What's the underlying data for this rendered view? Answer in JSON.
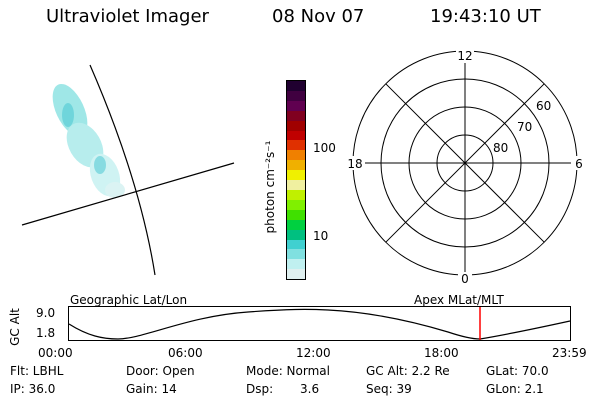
{
  "header": {
    "instrument": "Ultraviolet Imager",
    "date": "08 Nov 07",
    "time": "19:43:10 UT"
  },
  "colorbar": {
    "label": "photon cm⁻²s⁻¹",
    "tick_labels": [
      "100",
      "10"
    ],
    "colors_top_to_bottom": [
      "#200030",
      "#400040",
      "#600050",
      "#800020",
      "#a00000",
      "#c00000",
      "#e03000",
      "#f08000",
      "#f0b000",
      "#f0f000",
      "#f0f0a0",
      "#c0f000",
      "#80f000",
      "#40e000",
      "#00d040",
      "#00c080",
      "#40d0d0",
      "#80e0e0",
      "#c0f0f0",
      "#e0f0f0"
    ]
  },
  "polar_plot": {
    "clock_labels": [
      "12",
      "18",
      "6",
      "0"
    ],
    "lat_labels": [
      "60",
      "70",
      "80"
    ]
  },
  "timeline": {
    "left_label": "Geographic Lat/Lon",
    "right_label": "Apex MLat/MLT",
    "axis_label": "GC Alt",
    "y_labels": [
      "9.0",
      "1.8"
    ],
    "x_labels": [
      "00:00",
      "06:00",
      "12:00",
      "18:00",
      "23:59"
    ],
    "current_marker_time": "19:43",
    "marker_color": "#ff0000"
  },
  "info": {
    "row1": [
      "Flt: LBHL",
      "Door: Open",
      "Mode: Normal",
      "GC Alt: 2.2 Re",
      "GLat: 70.0"
    ],
    "row2": [
      "IP: 36.0",
      "Gain: 14",
      "Dsp:",
      "3.6",
      "Seq: 39",
      "GLon: 2.1"
    ]
  }
}
